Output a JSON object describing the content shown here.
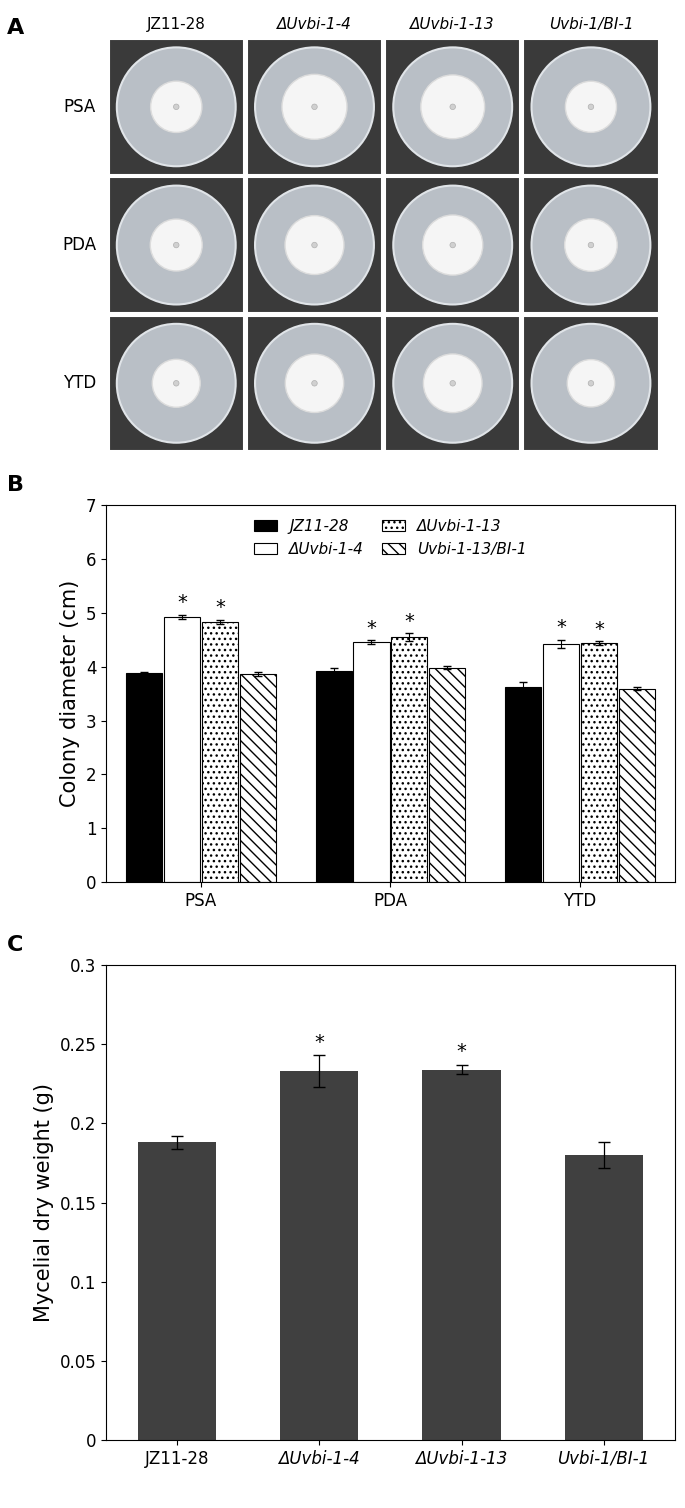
{
  "panel_labels": [
    "A",
    "B",
    "C"
  ],
  "plates": {
    "media": [
      "PSA",
      "PDA",
      "YTD"
    ],
    "strains": [
      "JZ11-28",
      "ΔUvbi-1-4",
      "ΔUvbi-1-13",
      "Uvbi-1/BI-1"
    ]
  },
  "chart_data": [
    {
      "type": "bar",
      "y_label": "Colony diameter (cm)",
      "categories": [
        "PSA",
        "PDA",
        "YTD"
      ],
      "series": [
        {
          "name": "JZ11-28",
          "color": "#000000",
          "values": [
            3.88,
            3.93,
            3.63
          ],
          "errors": [
            0.03,
            0.05,
            0.08
          ],
          "annotations": [
            null,
            null,
            null
          ]
        },
        {
          "name": "ΔUvbi-1-4",
          "color": "#ffffff",
          "values": [
            4.92,
            4.46,
            4.42
          ],
          "errors": [
            0.04,
            0.03,
            0.08
          ],
          "annotations": [
            "*",
            "*",
            "*"
          ]
        },
        {
          "name": "ΔUvbi-1-13",
          "color": "#ffffff",
          "values": [
            4.83,
            4.55,
            4.44
          ],
          "errors": [
            0.04,
            0.07,
            0.03
          ],
          "annotations": [
            "*",
            "*",
            "*"
          ]
        },
        {
          "name": "Uvbi-1-13/BI-1",
          "color": "#ffffff",
          "values": [
            3.87,
            3.98,
            3.59
          ],
          "errors": [
            0.04,
            0.03,
            0.03
          ],
          "annotations": [
            null,
            null,
            null
          ]
        }
      ],
      "ylim": [
        0,
        7
      ],
      "yticks": [
        0,
        1,
        2,
        3,
        4,
        5,
        6,
        7
      ],
      "legend": "upper center",
      "grid": false
    },
    {
      "type": "bar",
      "y_label": "Mycelial dry weight (g)",
      "categories": [
        "JZ11-28",
        "ΔUvbi-1-4",
        "ΔUvbi-1-13",
        "Uvbi-1/BI-1"
      ],
      "values": [
        0.188,
        0.233,
        0.234,
        0.18
      ],
      "errors": [
        0.004,
        0.01,
        0.003,
        0.008
      ],
      "annotations": [
        null,
        "*",
        "*",
        null
      ],
      "color": "#404040",
      "ylim": [
        0,
        0.3
      ],
      "yticks": [
        0,
        0.05,
        0.1,
        0.15,
        0.2,
        0.25,
        0.3
      ],
      "grid": false
    }
  ]
}
